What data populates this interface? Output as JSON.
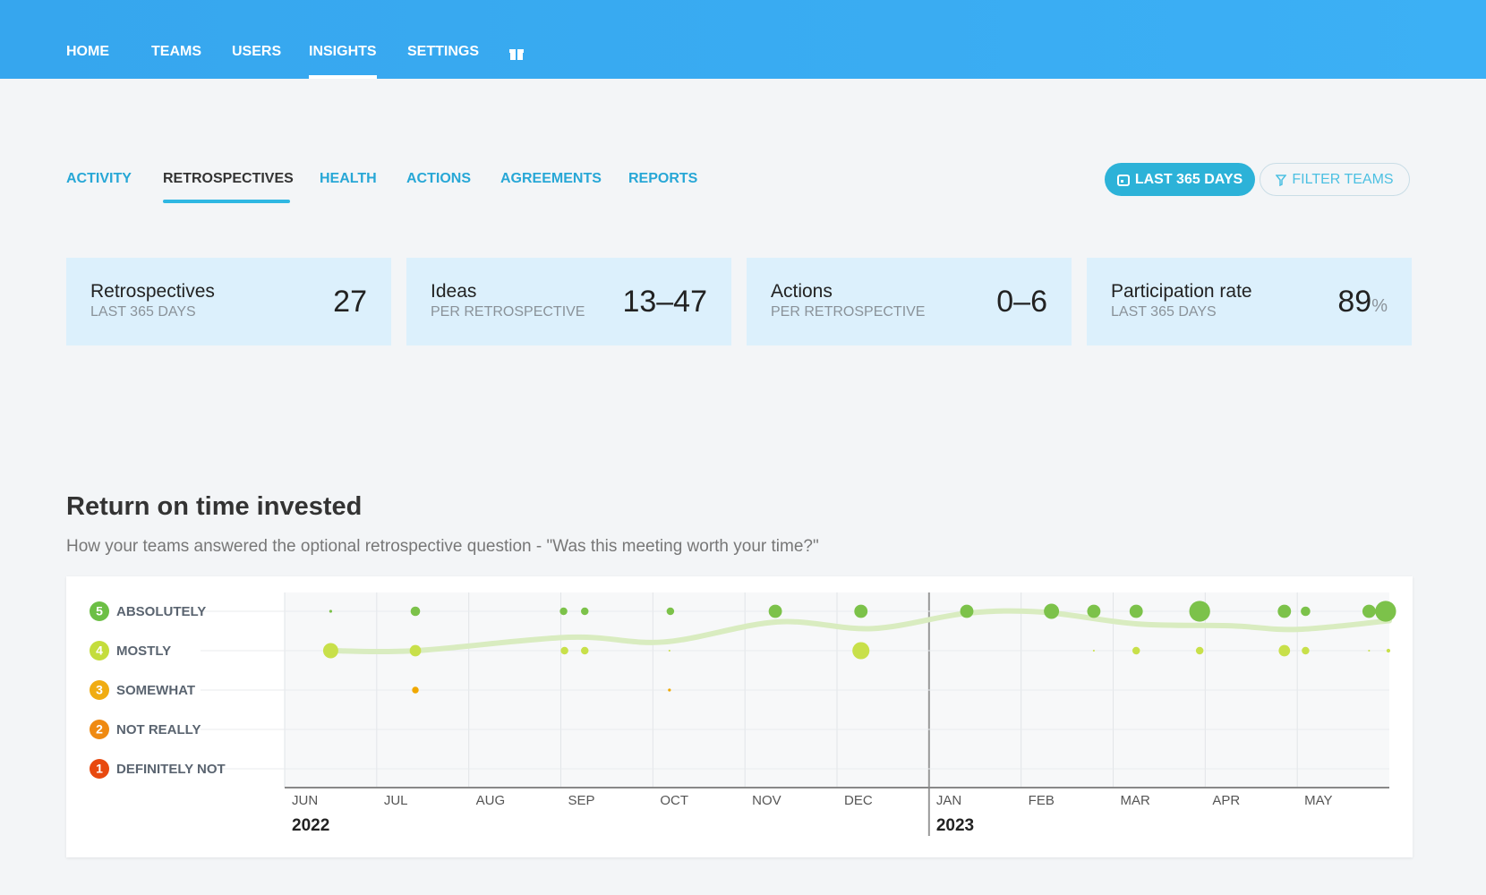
{
  "nav": {
    "items": [
      "HOME",
      "TEAMS",
      "USERS",
      "INSIGHTS",
      "SETTINGS"
    ],
    "active": 3
  },
  "tabs": {
    "items": [
      "ACTIVITY",
      "RETROSPECTIVES",
      "HEALTH",
      "ACTIONS",
      "AGREEMENTS",
      "REPORTS"
    ],
    "active": 1
  },
  "buttons": {
    "period": "LAST 365 DAYS",
    "filter": "FILTER TEAMS"
  },
  "stats": [
    {
      "title": "Retrospectives",
      "subtitle": "LAST 365 DAYS",
      "value": 27
    },
    {
      "title": "Ideas",
      "subtitle": "PER RETROSPECTIVE",
      "value": "13–47"
    },
    {
      "title": "Actions",
      "subtitle": "PER RETROSPECTIVE",
      "value": "0–6"
    },
    {
      "title": "Participation rate",
      "subtitle": "LAST 365 DAYS",
      "value": 89,
      "unit": "%"
    }
  ],
  "section": {
    "title": "Return on time invested",
    "subtitle": "How your teams answered the optional retrospective question - \"Was this meeting worth your time?\""
  },
  "chart_data": {
    "type": "bubble",
    "yticks": [
      {
        "value": 5,
        "label": "ABSOLUTELY"
      },
      {
        "value": 4,
        "label": "MOSTLY"
      },
      {
        "value": 3,
        "label": "SOMEWHAT"
      },
      {
        "value": 2,
        "label": "NOT REALLY"
      },
      {
        "value": 1,
        "label": "DEFINITELY NOT"
      }
    ],
    "level_colors": [
      "#6cbf45",
      "#c4dd3c",
      "#f0ac12",
      "#ef8a12",
      "#e8490f"
    ],
    "ylim": [
      1,
      5
    ],
    "xlim": [
      0,
      12
    ],
    "xticks": [
      {
        "value": 0,
        "label": "JUN"
      },
      {
        "value": 1,
        "label": "JUL"
      },
      {
        "value": 2,
        "label": "AUG"
      },
      {
        "value": 3,
        "label": "SEP"
      },
      {
        "value": 4,
        "label": "OCT"
      },
      {
        "value": 5,
        "label": "NOV"
      },
      {
        "value": 6,
        "label": "DEC"
      },
      {
        "value": 7,
        "label": "JAN"
      },
      {
        "value": 8,
        "label": "FEB"
      },
      {
        "value": 9,
        "label": "MAR"
      },
      {
        "value": 10,
        "label": "APR"
      },
      {
        "value": 11,
        "label": "MAY"
      }
    ],
    "year_ticks": [
      {
        "value": 0,
        "label": "2022"
      },
      {
        "value": 7,
        "label": "2023"
      }
    ],
    "series": [
      {
        "color": "#7cc24a",
        "x": [
          0.5,
          1.42,
          3.03,
          3.26,
          4.19,
          5.33,
          6.26,
          7.41,
          8.33,
          8.79,
          9.25,
          9.94,
          10.86,
          11.09,
          11.78,
          11.96
        ],
        "values": [
          5,
          5,
          5,
          5,
          5,
          5,
          5,
          5,
          5,
          5,
          5,
          5,
          5,
          5,
          5,
          5
        ],
        "size": [
          1.5,
          5,
          4,
          4,
          4,
          7,
          7,
          7,
          8,
          7,
          7,
          11,
          7,
          5,
          7,
          11
        ]
      },
      {
        "color": "#c8e04a",
        "x": [
          0.5,
          1.42,
          3.04,
          3.26,
          4.18,
          6.26,
          8.79,
          9.25,
          9.94,
          10.86,
          11.09,
          11.78,
          11.99
        ],
        "values": [
          4,
          4,
          4,
          4,
          4,
          4,
          4,
          4,
          4,
          4,
          4,
          4,
          4
        ],
        "size": [
          8,
          6,
          4,
          4,
          1,
          9,
          1,
          4,
          4,
          6,
          4,
          1,
          2
        ]
      },
      {
        "color": "#f0a800",
        "x": [
          1.42,
          4.18
        ],
        "values": [
          3,
          3
        ],
        "size": [
          3.5,
          1.5
        ]
      }
    ],
    "trend": {
      "color": "#d9ecc0",
      "x": [
        0.5,
        1.42,
        3.09,
        4.12,
        5.35,
        6.38,
        7.41,
        8.23,
        9.26,
        10.29,
        11.0,
        12
      ],
      "values": [
        4.0,
        4.0,
        4.34,
        4.22,
        4.73,
        4.56,
        4.95,
        4.98,
        4.68,
        4.63,
        4.54,
        4.76
      ]
    }
  }
}
